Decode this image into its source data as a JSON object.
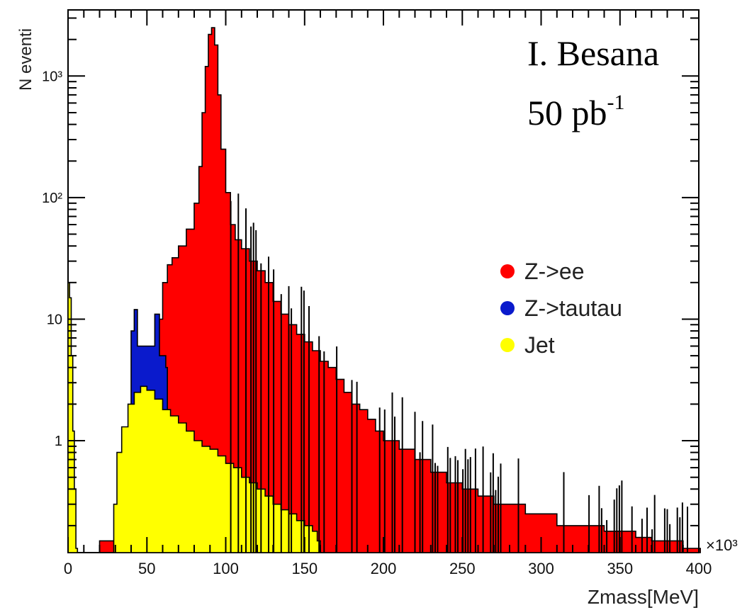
{
  "chart_data": {
    "type": "histogram",
    "ylabel": "N eventi",
    "xlabel": "Zmass[MeV]",
    "x_multiplier": "×10³",
    "xlim": [
      0,
      400
    ],
    "ylim": [
      0.12,
      3500
    ],
    "log_y": true,
    "grid": false,
    "legend_position": "right",
    "x_ticks": [
      "0",
      "50",
      "100",
      "150",
      "200",
      "250",
      "300",
      "350",
      "400"
    ],
    "y_ticks": [
      {
        "value": 1,
        "label": "1"
      },
      {
        "value": 10,
        "label": "10"
      },
      {
        "value": 100,
        "label": "10²"
      },
      {
        "value": 1000,
        "label": "10³"
      }
    ],
    "annotations": {
      "author": "I. Besana",
      "lumi": "50 pb",
      "lumi_exp": "-1"
    },
    "series": [
      {
        "name": "Z->ee",
        "color": "#ff0000",
        "points": [
          [
            20,
            0.15
          ],
          [
            30,
            0.15
          ],
          [
            35,
            0.6
          ],
          [
            40,
            1.5
          ],
          [
            45,
            2.2
          ],
          [
            50,
            2.5
          ],
          [
            55,
            3.0
          ],
          [
            57,
            10
          ],
          [
            60,
            20
          ],
          [
            63,
            28
          ],
          [
            66,
            32
          ],
          [
            70,
            40
          ],
          [
            75,
            55
          ],
          [
            80,
            90
          ],
          [
            83,
            180
          ],
          [
            85,
            500
          ],
          [
            87,
            1200
          ],
          [
            89,
            2200
          ],
          [
            91,
            2500
          ],
          [
            93,
            1800
          ],
          [
            95,
            700
          ],
          [
            97,
            250
          ],
          [
            100,
            110
          ],
          [
            103,
            60
          ],
          [
            106,
            45
          ],
          [
            110,
            38
          ],
          [
            115,
            30
          ],
          [
            120,
            25
          ],
          [
            125,
            20
          ],
          [
            130,
            14
          ],
          [
            135,
            11
          ],
          [
            140,
            9
          ],
          [
            145,
            7.5
          ],
          [
            150,
            6.5
          ],
          [
            155,
            5.5
          ],
          [
            160,
            4.5
          ],
          [
            165,
            4.0
          ],
          [
            170,
            3.2
          ],
          [
            175,
            2.5
          ],
          [
            180,
            2.0
          ],
          [
            185,
            1.8
          ],
          [
            190,
            1.5
          ],
          [
            195,
            1.2
          ],
          [
            200,
            1.0
          ],
          [
            210,
            0.85
          ],
          [
            220,
            0.7
          ],
          [
            230,
            0.55
          ],
          [
            240,
            0.45
          ],
          [
            250,
            0.4
          ],
          [
            260,
            0.35
          ],
          [
            270,
            0.3
          ],
          [
            280,
            0.3
          ],
          [
            290,
            0.25
          ],
          [
            300,
            0.25
          ],
          [
            310,
            0.2
          ],
          [
            320,
            0.2
          ],
          [
            330,
            0.2
          ],
          [
            340,
            0.18
          ],
          [
            350,
            0.18
          ],
          [
            360,
            0.16
          ],
          [
            370,
            0.15
          ],
          [
            380,
            0.15
          ],
          [
            390,
            0.13
          ],
          [
            400,
            0.13
          ]
        ]
      },
      {
        "name": "Z->tautau",
        "color": "#0a1acc",
        "points": [
          [
            40,
            8
          ],
          [
            42,
            12
          ],
          [
            44,
            6
          ],
          [
            50,
            6
          ],
          [
            55,
            11
          ],
          [
            58,
            5
          ],
          [
            62,
            4
          ]
        ]
      },
      {
        "name": "Jet",
        "color": "#ffff00",
        "points": [
          [
            0,
            20
          ],
          [
            1,
            15
          ],
          [
            2,
            5
          ],
          [
            3,
            1.2
          ],
          [
            4,
            0.4
          ],
          [
            5,
            0.13
          ],
          [
            6,
            0.12
          ],
          [
            27,
            0.12
          ],
          [
            29,
            0.3
          ],
          [
            31,
            0.8
          ],
          [
            34,
            1.3
          ],
          [
            38,
            2.0
          ],
          [
            42,
            2.5
          ],
          [
            46,
            2.8
          ],
          [
            50,
            2.6
          ],
          [
            55,
            2.2
          ],
          [
            60,
            1.8
          ],
          [
            65,
            1.6
          ],
          [
            70,
            1.4
          ],
          [
            75,
            1.2
          ],
          [
            80,
            1.0
          ],
          [
            85,
            0.9
          ],
          [
            90,
            0.85
          ],
          [
            95,
            0.75
          ],
          [
            100,
            0.65
          ],
          [
            105,
            0.6
          ],
          [
            110,
            0.5
          ],
          [
            115,
            0.45
          ],
          [
            120,
            0.4
          ],
          [
            125,
            0.35
          ],
          [
            130,
            0.3
          ],
          [
            135,
            0.27
          ],
          [
            140,
            0.25
          ],
          [
            145,
            0.22
          ],
          [
            150,
            0.2
          ],
          [
            155,
            0.18
          ],
          [
            158,
            0.15
          ],
          [
            160,
            0.12
          ]
        ]
      }
    ]
  }
}
